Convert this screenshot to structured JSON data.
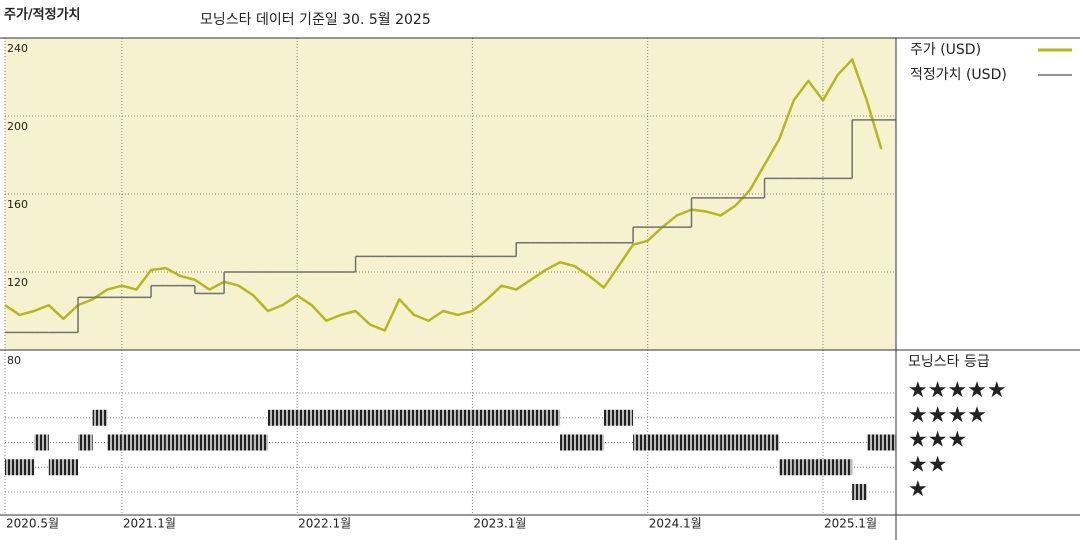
{
  "chart_data": [
    {
      "type": "line",
      "title": "주가/적정가치",
      "subtitle": "모닝스타 데이터 기준일 30. 5월 2025",
      "x": [
        "2020-05",
        "2020-06",
        "2020-07",
        "2020-08",
        "2020-09",
        "2020-10",
        "2020-11",
        "2020-12",
        "2021-01",
        "2021-02",
        "2021-03",
        "2021-04",
        "2021-05",
        "2021-06",
        "2021-07",
        "2021-08",
        "2021-09",
        "2021-10",
        "2021-11",
        "2021-12",
        "2022-01",
        "2022-02",
        "2022-03",
        "2022-04",
        "2022-05",
        "2022-06",
        "2022-07",
        "2022-08",
        "2022-09",
        "2022-10",
        "2022-11",
        "2022-12",
        "2023-01",
        "2023-02",
        "2023-03",
        "2023-04",
        "2023-05",
        "2023-06",
        "2023-07",
        "2023-08",
        "2023-09",
        "2023-10",
        "2023-11",
        "2023-12",
        "2024-01",
        "2024-02",
        "2024-03",
        "2024-04",
        "2024-05",
        "2024-06",
        "2024-07",
        "2024-08",
        "2024-09",
        "2024-10",
        "2024-11",
        "2024-12",
        "2025-01",
        "2025-02",
        "2025-03",
        "2025-04",
        "2025-05"
      ],
      "series": [
        {
          "name": "주가 (USD)",
          "color": "#b5b722",
          "values": [
            103,
            98,
            100,
            103,
            96,
            103,
            106,
            111,
            113,
            111,
            121,
            122,
            118,
            116,
            111,
            115,
            113,
            108,
            100,
            103,
            108,
            103,
            95,
            98,
            100,
            93,
            90,
            106,
            98,
            95,
            100,
            98,
            100,
            106,
            113,
            111,
            116,
            121,
            125,
            123,
            118,
            112,
            123,
            134,
            136,
            143,
            149,
            152,
            151,
            149,
            154,
            162,
            175,
            188,
            208,
            218,
            208,
            221,
            229,
            208,
            183
          ]
        },
        {
          "name": "적정가치 (USD)",
          "color": "#707070",
          "step": true,
          "values": [
            89,
            89,
            89,
            89,
            89,
            107,
            107,
            107,
            107,
            107,
            113,
            113,
            113,
            109,
            109,
            120,
            120,
            120,
            120,
            120,
            120,
            120,
            120,
            120,
            128,
            128,
            128,
            128,
            128,
            128,
            128,
            128,
            128,
            128,
            128,
            135,
            135,
            135,
            135,
            135,
            135,
            135,
            135,
            143,
            143,
            143,
            143,
            158,
            158,
            158,
            158,
            158,
            168,
            168,
            168,
            168,
            168,
            168,
            198,
            198,
            198
          ]
        }
      ],
      "xlim": [
        "2020-05",
        "2025-06"
      ],
      "xticks": [
        {
          "value": "2020-05",
          "label": "2020.5월"
        },
        {
          "value": "2021-01",
          "label": "2021.1월"
        },
        {
          "value": "2022-01",
          "label": "2022.1월"
        },
        {
          "value": "2023-01",
          "label": "2023.1월"
        },
        {
          "value": "2024-01",
          "label": "2024.1월"
        },
        {
          "value": "2025-01",
          "label": "2025.1월"
        }
      ],
      "ylim": [
        80,
        240
      ],
      "yticks": [
        80,
        120,
        160,
        200,
        240
      ],
      "grid": true,
      "background": "#f6f2cf"
    },
    {
      "type": "rating",
      "title": "모닝스타 등급",
      "levels": [
        {
          "value": 5,
          "label": "★★★★★"
        },
        {
          "value": 4,
          "label": "★★★★"
        },
        {
          "value": 3,
          "label": "★★★"
        },
        {
          "value": 2,
          "label": "★★"
        },
        {
          "value": 1,
          "label": "★"
        }
      ],
      "values": [
        2,
        2,
        3,
        2,
        2,
        3,
        4,
        3,
        3,
        3,
        3,
        3,
        3,
        3,
        3,
        3,
        3,
        3,
        4,
        4,
        4,
        4,
        4,
        4,
        4,
        4,
        4,
        4,
        4,
        4,
        4,
        4,
        4,
        4,
        4,
        4,
        4,
        4,
        3,
        3,
        3,
        4,
        4,
        3,
        3,
        3,
        3,
        3,
        3,
        3,
        3,
        3,
        3,
        2,
        2,
        2,
        2,
        2,
        1,
        3,
        3
      ]
    }
  ]
}
